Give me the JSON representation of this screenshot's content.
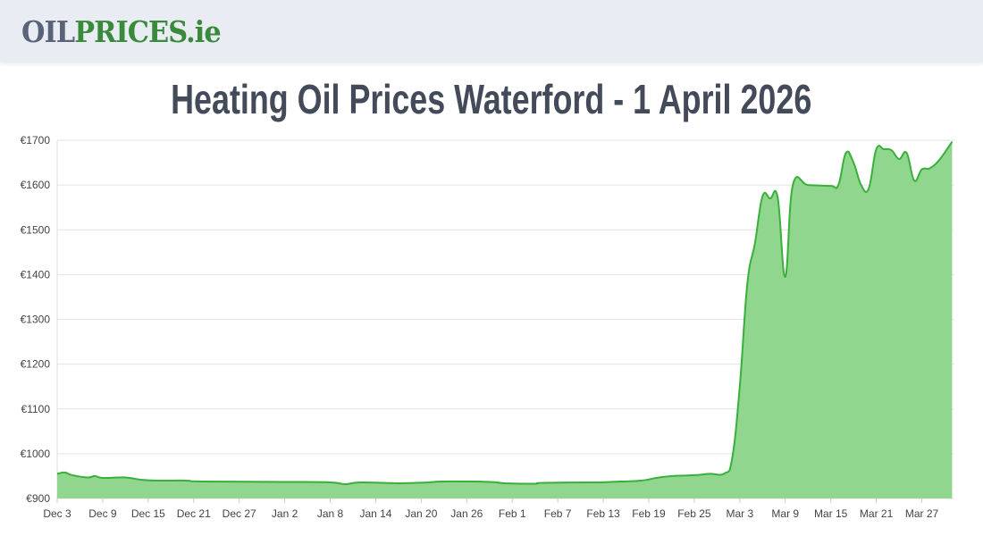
{
  "header": {
    "logo_part1": "OIL",
    "logo_part2": "PRICES.ie"
  },
  "chart_data": {
    "type": "area",
    "title": "Heating Oil Prices Waterford - 1 April 2026",
    "xlabel": "",
    "ylabel": "",
    "ylim": [
      900,
      1700
    ],
    "yticks": [
      "€900",
      "€1000",
      "€1100",
      "€1200",
      "€1300",
      "€1400",
      "€1500",
      "€1600",
      "€1700"
    ],
    "ytick_values": [
      900,
      1000,
      1100,
      1200,
      1300,
      1400,
      1500,
      1600,
      1700
    ],
    "xticks": [
      "Dec 3",
      "Dec 9",
      "Dec 15",
      "Dec 21",
      "Dec 27",
      "Jan 2",
      "Jan 8",
      "Jan 14",
      "Jan 20",
      "Jan 26",
      "Feb 1",
      "Feb 7",
      "Feb 13",
      "Feb 19",
      "Feb 25",
      "Mar 3",
      "Mar 9",
      "Mar 15",
      "Mar 21",
      "Mar 27"
    ],
    "grid": true,
    "line_color": "#38b03a",
    "fill_color": "#90d68f",
    "x": [
      "2025-12-03",
      "2025-12-04",
      "2025-12-05",
      "2025-12-07",
      "2025-12-08",
      "2025-12-09",
      "2025-12-12",
      "2025-12-14",
      "2025-12-16",
      "2025-12-20",
      "2025-12-22",
      "2026-01-02",
      "2026-01-08",
      "2026-01-10",
      "2026-01-12",
      "2026-01-17",
      "2026-01-21",
      "2026-01-23",
      "2026-01-29",
      "2026-01-31",
      "2026-02-04",
      "2026-02-05",
      "2026-02-12",
      "2026-02-14",
      "2026-02-18",
      "2026-02-20",
      "2026-02-22",
      "2026-02-25",
      "2026-02-27",
      "2026-03-01",
      "2026-03-02",
      "2026-03-03",
      "2026-03-04",
      "2026-03-05",
      "2026-03-06",
      "2026-03-07",
      "2026-03-08",
      "2026-03-09",
      "2026-03-10",
      "2026-03-12",
      "2026-03-15",
      "2026-03-16",
      "2026-03-17",
      "2026-03-18",
      "2026-03-19",
      "2026-03-20",
      "2026-03-21",
      "2026-03-22",
      "2026-03-23",
      "2026-03-24",
      "2026-03-25",
      "2026-03-26",
      "2026-03-27",
      "2026-03-28",
      "2026-03-29",
      "2026-03-30",
      "2026-03-31"
    ],
    "values": [
      955,
      958,
      952,
      947,
      950,
      946,
      947,
      942,
      940,
      940,
      938,
      937,
      936,
      932,
      936,
      934,
      936,
      938,
      937,
      934,
      933,
      935,
      936,
      937,
      940,
      946,
      950,
      952,
      955,
      956,
      990,
      1150,
      1380,
      1470,
      1575,
      1570,
      1572,
      1395,
      1600,
      1600,
      1598,
      1600,
      1672,
      1650,
      1600,
      1592,
      1680,
      1680,
      1678,
      1658,
      1672,
      1610,
      1635,
      1637,
      1650,
      1672,
      1697
    ]
  }
}
